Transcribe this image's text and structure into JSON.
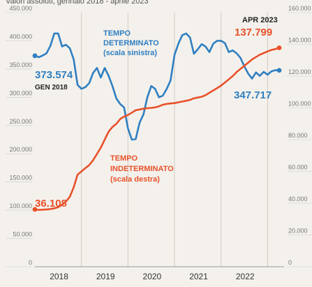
{
  "header_text": "Valori assoluti, gennaio 2018 - aprile 2023",
  "chart_data": {
    "type": "line",
    "x_ticks": [
      "2018",
      "2019",
      "2020",
      "2021",
      "2022"
    ],
    "y_left": {
      "ticks": [
        "0",
        "50.000",
        "100.000",
        "150.000",
        "200.000",
        "250.000",
        "300.000",
        "350.000",
        "400.000",
        "450.000"
      ],
      "ylim": [
        0,
        450000
      ]
    },
    "y_right": {
      "ticks": [
        "0",
        "20.000",
        "40.000",
        "60.000",
        "80.000",
        "100.000",
        "120.000",
        "140.000",
        "160.000"
      ],
      "ylim": [
        0,
        160000
      ]
    },
    "series": [
      {
        "name": "TEMPO DETERMINATO (scala sinistra)",
        "axis": "left",
        "color": "#2f7fc1",
        "start_label": "373.574",
        "end_label": "347.717",
        "points": [
          [
            "2018-01",
            373574
          ],
          [
            "2018-02",
            371000
          ],
          [
            "2018-03",
            374000
          ],
          [
            "2018-04",
            378000
          ],
          [
            "2018-05",
            391000
          ],
          [
            "2018-06",
            413000
          ],
          [
            "2018-07",
            413000
          ],
          [
            "2018-08",
            390000
          ],
          [
            "2018-09",
            393000
          ],
          [
            "2018-10",
            387000
          ],
          [
            "2018-11",
            367000
          ],
          [
            "2018-12",
            322000
          ],
          [
            "2019-01",
            315000
          ],
          [
            "2019-02",
            318000
          ],
          [
            "2019-03",
            325000
          ],
          [
            "2019-04",
            343000
          ],
          [
            "2019-05",
            352000
          ],
          [
            "2019-06",
            335000
          ],
          [
            "2019-07",
            352000
          ],
          [
            "2019-08",
            338000
          ],
          [
            "2019-09",
            320000
          ],
          [
            "2019-10",
            298000
          ],
          [
            "2019-11",
            288000
          ],
          [
            "2019-12",
            282000
          ],
          [
            "2020-01",
            245000
          ],
          [
            "2020-02",
            225000
          ],
          [
            "2020-03",
            226000
          ],
          [
            "2020-04",
            255000
          ],
          [
            "2020-05",
            270000
          ],
          [
            "2020-06",
            300000
          ],
          [
            "2020-07",
            320000
          ],
          [
            "2020-08",
            315000
          ],
          [
            "2020-09",
            300000
          ],
          [
            "2020-10",
            303000
          ],
          [
            "2020-11",
            315000
          ],
          [
            "2020-12",
            330000
          ],
          [
            "2021-01",
            375000
          ],
          [
            "2021-02",
            395000
          ],
          [
            "2021-03",
            410000
          ],
          [
            "2021-04",
            413000
          ],
          [
            "2021-05",
            406000
          ],
          [
            "2021-06",
            377000
          ],
          [
            "2021-07",
            385000
          ],
          [
            "2021-08",
            394000
          ],
          [
            "2021-09",
            390000
          ],
          [
            "2021-10",
            380000
          ],
          [
            "2021-11",
            395000
          ],
          [
            "2021-12",
            400000
          ],
          [
            "2022-01",
            400000
          ],
          [
            "2022-02",
            396000
          ],
          [
            "2022-03",
            380000
          ],
          [
            "2022-04",
            383000
          ],
          [
            "2022-05",
            378000
          ],
          [
            "2022-06",
            370000
          ],
          [
            "2022-07",
            355000
          ],
          [
            "2022-08",
            342000
          ],
          [
            "2022-09",
            333000
          ],
          [
            "2022-10",
            344000
          ],
          [
            "2022-11",
            338000
          ],
          [
            "2022-12",
            345000
          ],
          [
            "2023-01",
            340000
          ],
          [
            "2023-02",
            346000
          ],
          [
            "2023-03",
            348000
          ],
          [
            "2023-04",
            347717
          ]
        ]
      },
      {
        "name": "TEMPO INDETERMINATO (scala destra)",
        "axis": "right",
        "color": "#e8512a",
        "start_label": "36.108",
        "end_label": "137.799",
        "points": [
          [
            "2018-01",
            36108
          ],
          [
            "2018-02",
            35800
          ],
          [
            "2018-03",
            35900
          ],
          [
            "2018-04",
            36100
          ],
          [
            "2018-05",
            36300
          ],
          [
            "2018-06",
            36800
          ],
          [
            "2018-07",
            37500
          ],
          [
            "2018-08",
            39000
          ],
          [
            "2018-09",
            41000
          ],
          [
            "2018-10",
            44000
          ],
          [
            "2018-11",
            50000
          ],
          [
            "2018-12",
            58000
          ],
          [
            "2019-01",
            60000
          ],
          [
            "2019-02",
            62000
          ],
          [
            "2019-03",
            64000
          ],
          [
            "2019-04",
            67000
          ],
          [
            "2019-05",
            71000
          ],
          [
            "2019-06",
            75000
          ],
          [
            "2019-07",
            80000
          ],
          [
            "2019-08",
            85000
          ],
          [
            "2019-09",
            88000
          ],
          [
            "2019-10",
            90000
          ],
          [
            "2019-11",
            93000
          ],
          [
            "2019-12",
            94500
          ],
          [
            "2020-01",
            95500
          ],
          [
            "2020-02",
            97000
          ],
          [
            "2020-03",
            98500
          ],
          [
            "2020-04",
            99000
          ],
          [
            "2020-05",
            99500
          ],
          [
            "2020-06",
            99800
          ],
          [
            "2020-07",
            100000
          ],
          [
            "2020-08",
            100300
          ],
          [
            "2020-09",
            101000
          ],
          [
            "2020-10",
            102000
          ],
          [
            "2020-11",
            102500
          ],
          [
            "2020-12",
            102800
          ],
          [
            "2021-01",
            103000
          ],
          [
            "2021-02",
            103500
          ],
          [
            "2021-03",
            104000
          ],
          [
            "2021-04",
            104500
          ],
          [
            "2021-05",
            105000
          ],
          [
            "2021-06",
            106000
          ],
          [
            "2021-07",
            106500
          ],
          [
            "2021-08",
            107000
          ],
          [
            "2021-09",
            108000
          ],
          [
            "2021-10",
            109500
          ],
          [
            "2021-11",
            111000
          ],
          [
            "2021-12",
            112500
          ],
          [
            "2022-01",
            114000
          ],
          [
            "2022-02",
            116000
          ],
          [
            "2022-03",
            118000
          ],
          [
            "2022-04",
            120000
          ],
          [
            "2022-05",
            122500
          ],
          [
            "2022-06",
            124500
          ],
          [
            "2022-07",
            126500
          ],
          [
            "2022-08",
            128500
          ],
          [
            "2022-09",
            130500
          ],
          [
            "2022-10",
            132000
          ],
          [
            "2022-11",
            133500
          ],
          [
            "2022-12",
            134500
          ],
          [
            "2023-01",
            135500
          ],
          [
            "2023-02",
            136500
          ],
          [
            "2023-03",
            137000
          ],
          [
            "2023-04",
            137799
          ]
        ]
      }
    ],
    "annotations": {
      "start_date": "GEN 2018",
      "end_date": "APR 2023",
      "blue_label_1": "TEMPO",
      "blue_label_2": "DETERMINATO",
      "blue_label_3": "(scala sinistra)",
      "red_label_1": "TEMPO",
      "red_label_2": "INDETERMINATO",
      "red_label_3": "(scala destra)"
    },
    "grid": "vertical"
  }
}
